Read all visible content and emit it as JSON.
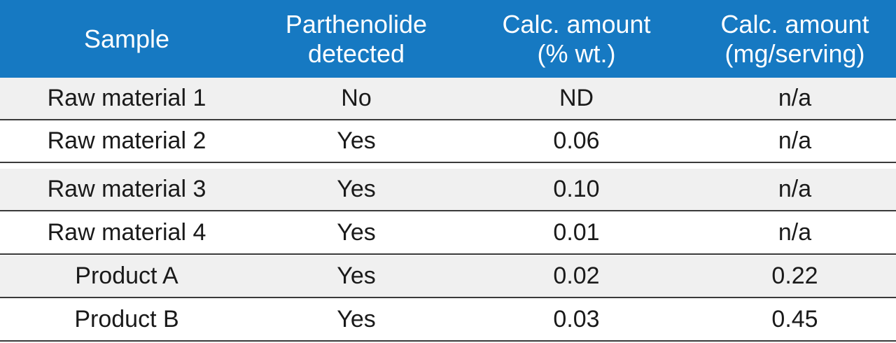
{
  "table": {
    "headers": [
      "Sample",
      "Parthenolide\ndetected",
      "Calc. amount\n(% wt.)",
      "Calc. amount\n(mg/serving)"
    ],
    "rows": [
      [
        "Raw material 1",
        "No",
        "ND",
        "n/a"
      ],
      [
        "Raw material 2",
        "Yes",
        "0.06",
        "n/a"
      ],
      [
        "Raw material 3",
        "Yes",
        "0.10",
        "n/a"
      ],
      [
        "Raw material 4",
        "Yes",
        "0.01",
        "n/a"
      ],
      [
        "Product A",
        "Yes",
        "0.02",
        "0.22"
      ],
      [
        "Product B",
        "Yes",
        "0.03",
        "0.45"
      ]
    ]
  },
  "colors": {
    "header_bg": "#1679c2",
    "header_text": "#ffffff",
    "shaded_row": "#f0f0f0",
    "plain_row": "#ffffff",
    "row_border": "#3a3a3a"
  }
}
